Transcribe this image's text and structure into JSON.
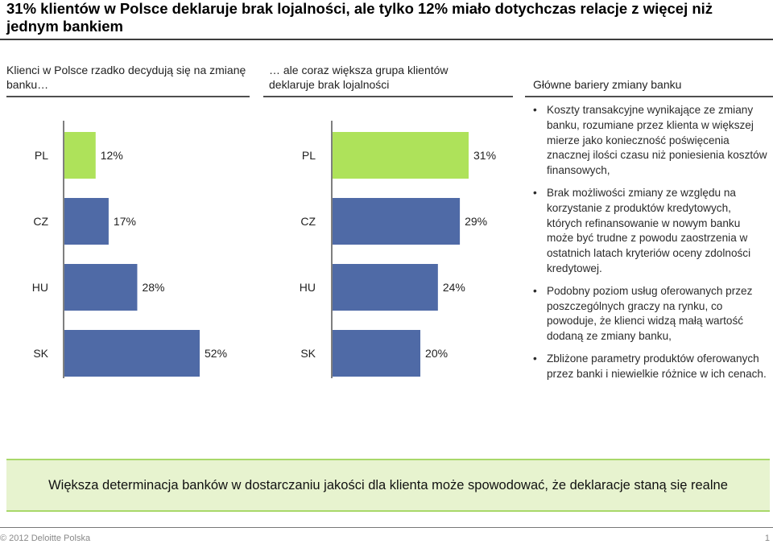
{
  "slide": {
    "title": "31% klientów w Polsce deklaruje brak lojalności, ale tylko 12% miało dotychczas relacje z więcej niż jednym bankiem",
    "banner": "Większa determinacja banków w dostarczaniu jakości dla klienta może spowodować, że deklaracje staną się realne",
    "footer": "© 2012 Deloitte Polska",
    "page_number": "1"
  },
  "columns": {
    "left_heading": "Klienci w Polsce rzadko decydują się na zmianę banku…",
    "middle_heading": "… ale coraz większa grupa klientów deklaruje brak lojalności",
    "right_heading": "Główne bariery zmiany banku"
  },
  "barriers": {
    "bullet_glyph": "•",
    "items": [
      "Koszty transakcyjne wynikające ze zmiany banku, rozumiane przez klienta w większej mierze jako konieczność poświęcenia znacznej ilości czasu niż poniesienia kosztów finansowych,",
      "Brak możliwości zmiany ze względu na korzystanie z produktów kredytowych, których refinansowanie w nowym banku może być trudne z powodu zaostrzenia w ostatnich latach kryteriów oceny zdolności kredytowej.",
      "Podobny poziom usług oferowanych przez poszczególnych graczy na rynku, co powoduje, że klienci widzą małą wartość dodaną ze zmiany banku,",
      "Zbliżone parametry produktów oferowanych przez banki i niewielkie różnice w ich cenach."
    ]
  },
  "colors": {
    "highlight": "#aee25a",
    "bar": "#4f6aa6",
    "axis": "#555555"
  },
  "chart_data": [
    {
      "type": "bar",
      "orientation": "horizontal",
      "categories": [
        "PL",
        "CZ",
        "HU",
        "SK"
      ],
      "values": [
        12,
        17,
        28,
        52
      ],
      "value_labels": [
        "12%",
        "17%",
        "28%",
        "52%"
      ],
      "highlight_index": 0,
      "xlim": [
        0,
        52
      ]
    },
    {
      "type": "bar",
      "orientation": "horizontal",
      "categories": [
        "PL",
        "CZ",
        "HU",
        "SK"
      ],
      "values": [
        31,
        29,
        24,
        20
      ],
      "value_labels": [
        "31%",
        "29%",
        "24%",
        "20%"
      ],
      "highlight_index": 0,
      "xlim": [
        0,
        31
      ]
    }
  ]
}
